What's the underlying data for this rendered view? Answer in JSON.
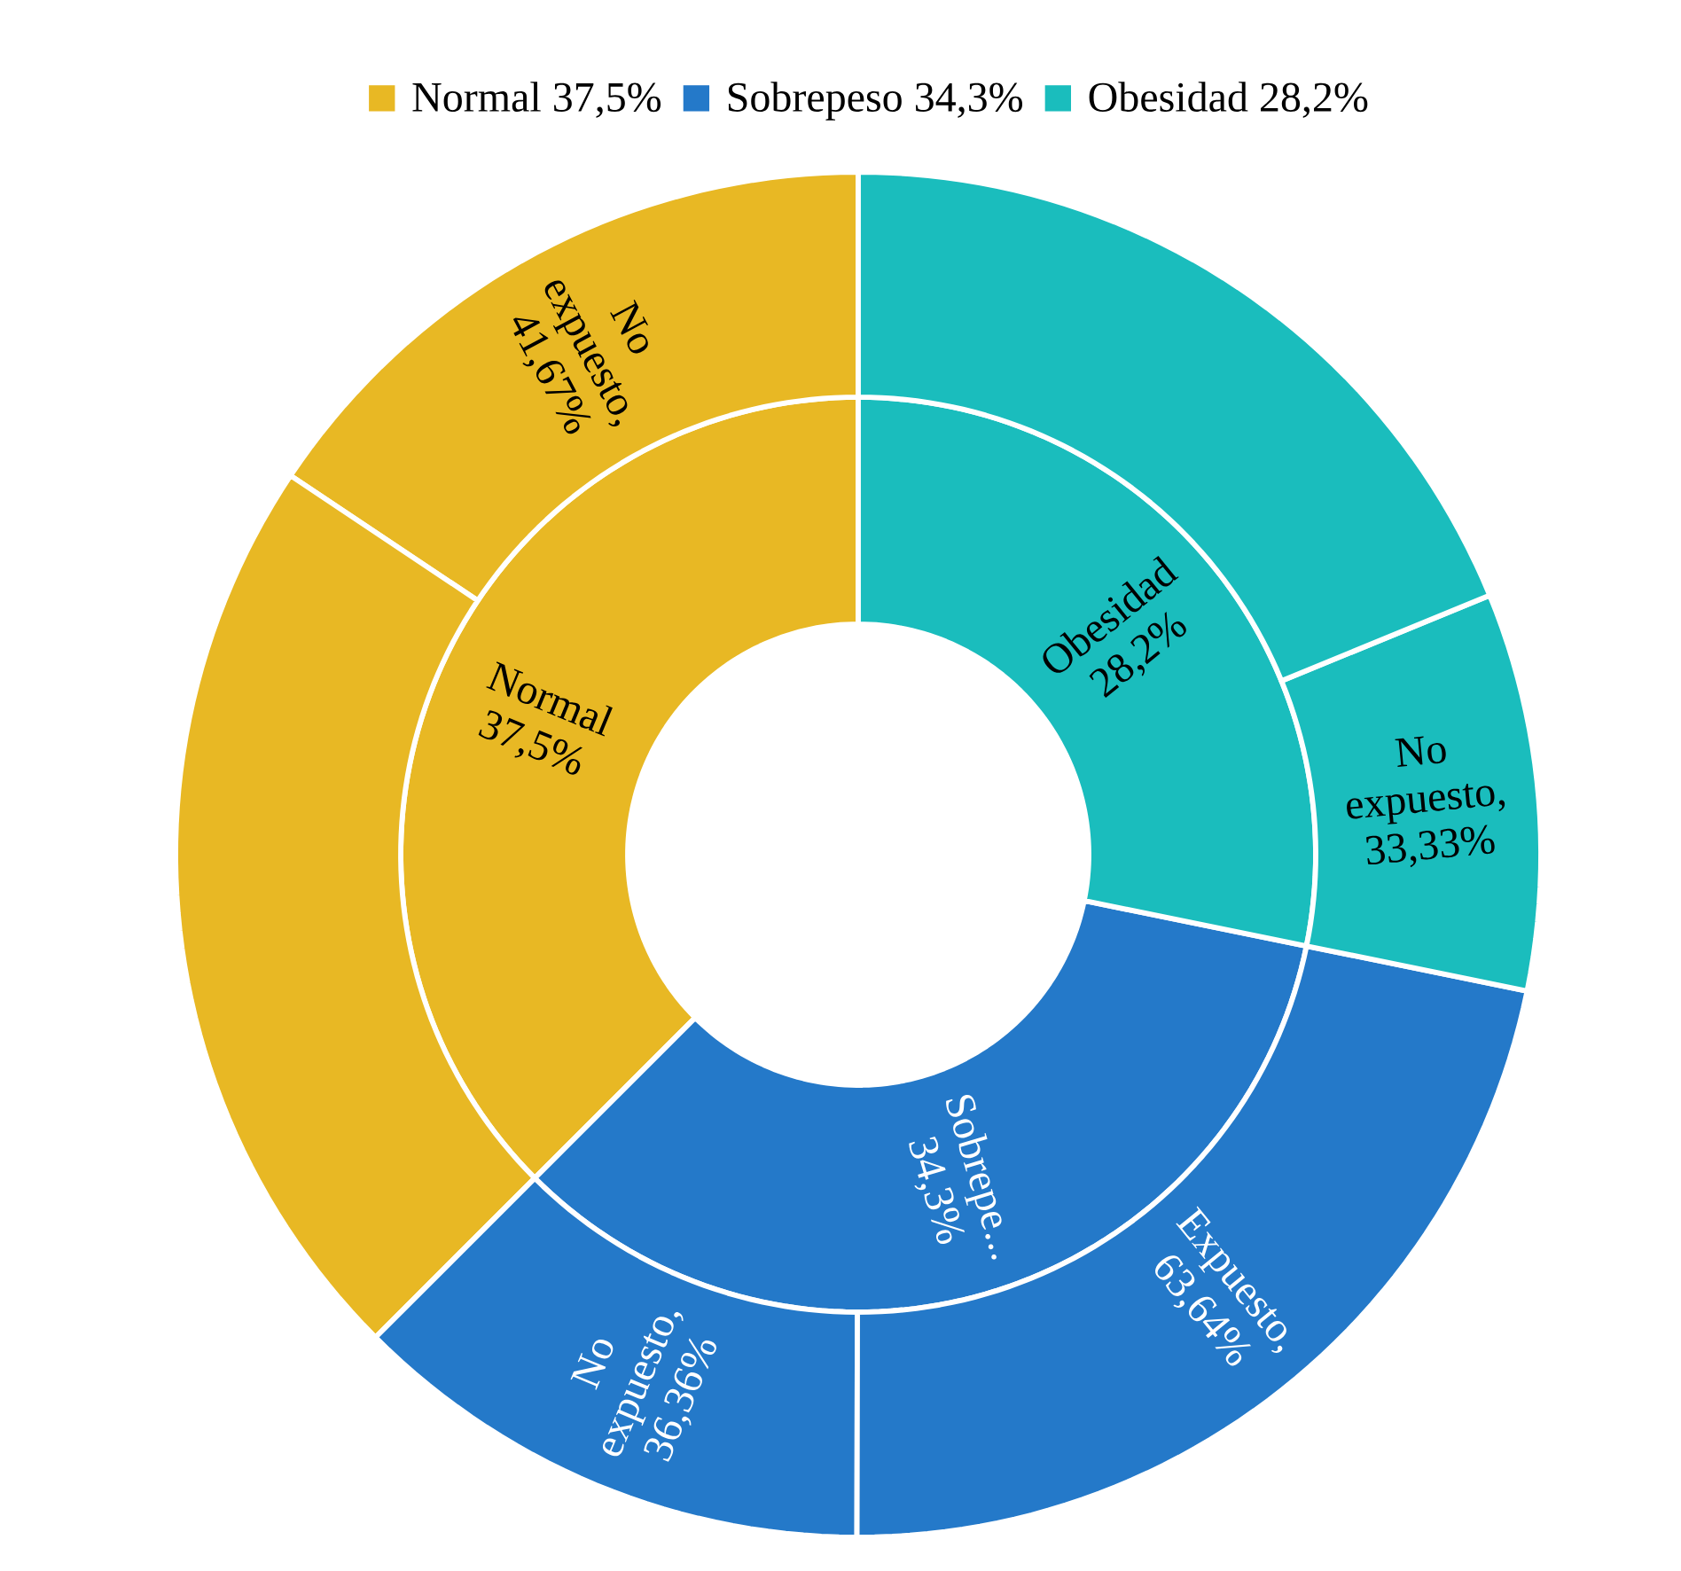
{
  "chart_data": [
    {
      "type": "donut",
      "categories": [
        "Normal",
        "Sobrepeso",
        "Obesidad"
      ],
      "values": [
        37.5,
        34.3,
        28.2
      ],
      "colors": [
        "#e8b824",
        "#2479c9",
        "#1abdbd"
      ],
      "value_labels": [
        "37,5%",
        "34,3%",
        "28,2%"
      ],
      "annotations": [
        "Normal",
        "Sobrepe...",
        "Obesidad"
      ],
      "legend": "top"
    },
    {
      "type": "donut",
      "categories": [
        null,
        null,
        null,
        null,
        null,
        null
      ],
      "values": [
        15.63,
        21.87,
        12.47,
        21.83,
        9.4,
        18.8
      ],
      "colors": [
        "#e8b824",
        "#e8b824",
        "#2479c9",
        "#2479c9",
        "#1abdbd",
        "#1abdbd"
      ],
      "annotations": [
        "No expuesto, 41,67%",
        null,
        "No expuesto, 36,36%",
        "Expuesto, 63,64%",
        "No expuesto, 33,33%",
        null
      ]
    }
  ]
}
